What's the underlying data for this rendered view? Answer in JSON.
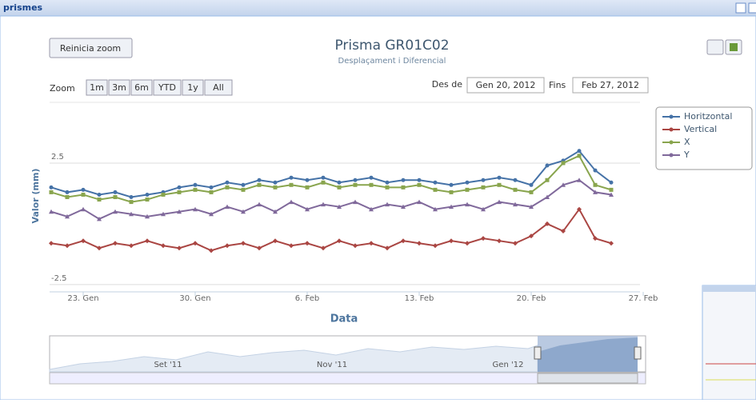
{
  "panel_title": "prismes",
  "reset_button": "Reinicia zoom",
  "zoom_label": "Zoom",
  "zoom_buttons": [
    "1m",
    "3m",
    "6m",
    "YTD",
    "1y",
    "All"
  ],
  "from_label": "Des de",
  "from_value": "Gen 20, 2012",
  "to_label": "Fins",
  "to_value": "Feb 27, 2012",
  "navigator": {
    "labels": [
      "Set '11",
      "Nov '11",
      "Gen '12"
    ]
  },
  "chart_data": {
    "type": "line",
    "title": "Prisma GR01C02",
    "subtitle": "Desplaçament i Diferencial",
    "xlabel": "Data",
    "ylabel": "Valor (mm)",
    "x": [
      21,
      22,
      23,
      24,
      25,
      26,
      27,
      28,
      29,
      30,
      31,
      32,
      33,
      34,
      35,
      36,
      37,
      38,
      39,
      40,
      41,
      42,
      43,
      44,
      45,
      46,
      47,
      48,
      49,
      50,
      51,
      52,
      53,
      54,
      55,
      56
    ],
    "xlim": [
      20.9,
      57.8
    ],
    "xticks": [
      {
        "value": 23,
        "label": "23. Gen"
      },
      {
        "value": 30,
        "label": "30. Gen"
      },
      {
        "value": 37,
        "label": "6. Feb"
      },
      {
        "value": 44,
        "label": "13. Feb"
      },
      {
        "value": 51,
        "label": "20. Feb"
      },
      {
        "value": 58,
        "label": "27. Feb"
      }
    ],
    "ylim": [
      -2.8,
      5
    ],
    "yticks": [
      -2.5,
      2.5
    ],
    "grid": true,
    "legend": "top-right",
    "series": [
      {
        "name": "Horitzontal",
        "color": "#4572a7",
        "marker": "circle",
        "values": [
          1.5,
          1.3,
          1.4,
          1.2,
          1.3,
          1.1,
          1.2,
          1.3,
          1.5,
          1.6,
          1.5,
          1.7,
          1.6,
          1.8,
          1.7,
          1.9,
          1.8,
          1.9,
          1.7,
          1.8,
          1.9,
          1.7,
          1.8,
          1.8,
          1.7,
          1.6,
          1.7,
          1.8,
          1.9,
          1.8,
          1.6,
          2.4,
          2.6,
          3.0,
          2.2,
          1.7
        ]
      },
      {
        "name": "Vertical",
        "color": "#aa4643",
        "marker": "diamond",
        "values": [
          -0.8,
          -0.9,
          -0.7,
          -1.0,
          -0.8,
          -0.9,
          -0.7,
          -0.9,
          -1.0,
          -0.8,
          -1.1,
          -0.9,
          -0.8,
          -1.0,
          -0.7,
          -0.9,
          -0.8,
          -1.0,
          -0.7,
          -0.9,
          -0.8,
          -1.0,
          -0.7,
          -0.8,
          -0.9,
          -0.7,
          -0.8,
          -0.6,
          -0.7,
          -0.8,
          -0.5,
          0.0,
          -0.3,
          0.6,
          -0.6,
          -0.8
        ]
      },
      {
        "name": "X",
        "color": "#89a54e",
        "marker": "square",
        "values": [
          1.3,
          1.1,
          1.2,
          1.0,
          1.1,
          0.9,
          1.0,
          1.2,
          1.3,
          1.4,
          1.3,
          1.5,
          1.4,
          1.6,
          1.5,
          1.6,
          1.5,
          1.7,
          1.5,
          1.6,
          1.6,
          1.5,
          1.5,
          1.6,
          1.4,
          1.3,
          1.4,
          1.5,
          1.6,
          1.4,
          1.3,
          1.8,
          2.5,
          2.8,
          1.6,
          1.4
        ]
      },
      {
        "name": "Y",
        "color": "#80699b",
        "marker": "triangle",
        "values": [
          0.5,
          0.3,
          0.6,
          0.2,
          0.5,
          0.4,
          0.3,
          0.4,
          0.5,
          0.6,
          0.4,
          0.7,
          0.5,
          0.8,
          0.5,
          0.9,
          0.6,
          0.8,
          0.7,
          0.9,
          0.6,
          0.8,
          0.7,
          0.9,
          0.6,
          0.7,
          0.8,
          0.6,
          0.9,
          0.8,
          0.7,
          1.1,
          1.6,
          1.8,
          1.3,
          1.2
        ]
      }
    ]
  }
}
